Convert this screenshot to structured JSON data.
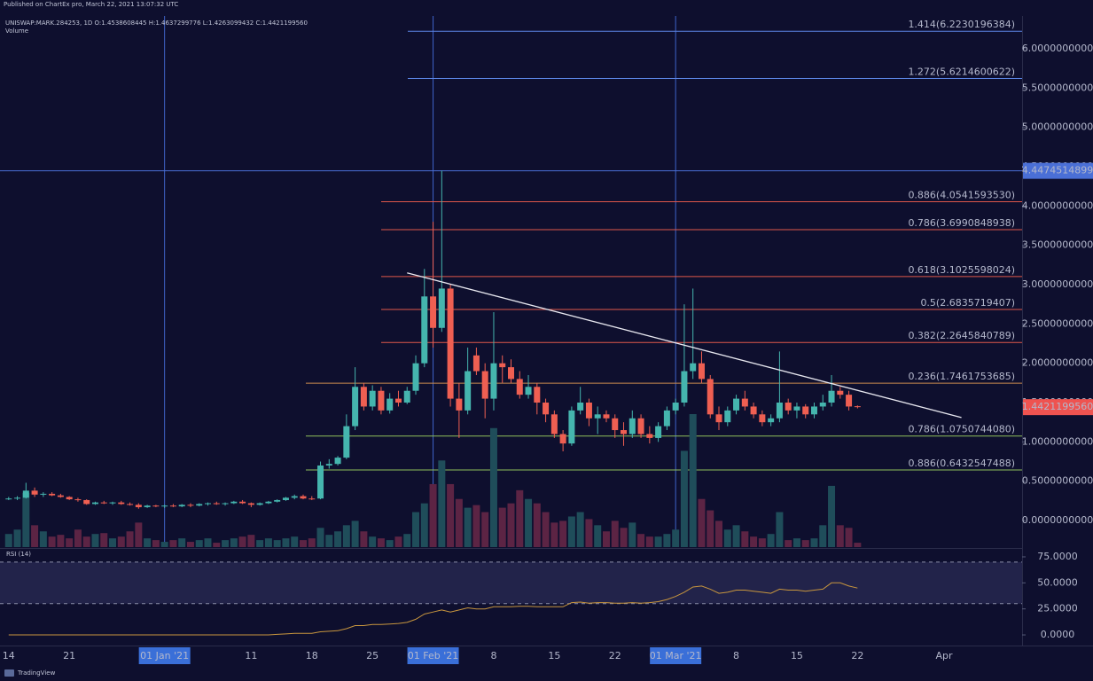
{
  "published": "Published on ChartEx pro, March 22, 2021 13:07:32 UTC",
  "footer": "TradingView",
  "chart_data": {
    "type": "candlestick",
    "symbol_line": "UNISWAP:MARK.284253, 1D O:1.4538608445 H:1.4637299776 L:1.4263099432 C:1.4421199560",
    "volume_label": "Volume",
    "up_color": "#45b5ae",
    "down_color": "#ef5f52",
    "volume_up_color": "#1f4d5a",
    "volume_down_color": "#5c2444",
    "x": [
      "2020-12-14",
      "2020-12-15",
      "2020-12-16",
      "2020-12-17",
      "2020-12-18",
      "2020-12-19",
      "2020-12-20",
      "2020-12-21",
      "2020-12-22",
      "2020-12-23",
      "2020-12-24",
      "2020-12-25",
      "2020-12-26",
      "2020-12-27",
      "2020-12-28",
      "2020-12-29",
      "2020-12-30",
      "2020-12-31",
      "2021-01-01",
      "2021-01-02",
      "2021-01-03",
      "2021-01-04",
      "2021-01-05",
      "2021-01-06",
      "2021-01-07",
      "2021-01-08",
      "2021-01-09",
      "2021-01-10",
      "2021-01-11",
      "2021-01-12",
      "2021-01-13",
      "2021-01-14",
      "2021-01-15",
      "2021-01-16",
      "2021-01-17",
      "2021-01-18",
      "2021-01-19",
      "2021-01-20",
      "2021-01-21",
      "2021-01-22",
      "2021-01-23",
      "2021-01-24",
      "2021-01-25",
      "2021-01-26",
      "2021-01-27",
      "2021-01-28",
      "2021-01-29",
      "2021-01-30",
      "2021-01-31",
      "2021-02-01",
      "2021-02-02",
      "2021-02-03",
      "2021-02-04",
      "2021-02-05",
      "2021-02-06",
      "2021-02-07",
      "2021-02-08",
      "2021-02-09",
      "2021-02-10",
      "2021-02-11",
      "2021-02-12",
      "2021-02-13",
      "2021-02-14",
      "2021-02-15",
      "2021-02-16",
      "2021-02-17",
      "2021-02-18",
      "2021-02-19",
      "2021-02-20",
      "2021-02-21",
      "2021-02-22",
      "2021-02-23",
      "2021-02-24",
      "2021-02-25",
      "2021-02-26",
      "2021-02-27",
      "2021-02-28",
      "2021-03-01",
      "2021-03-02",
      "2021-03-03",
      "2021-03-04",
      "2021-03-05",
      "2021-03-06",
      "2021-03-07",
      "2021-03-08",
      "2021-03-09",
      "2021-03-10",
      "2021-03-11",
      "2021-03-12",
      "2021-03-13",
      "2021-03-14",
      "2021-03-15",
      "2021-03-16",
      "2021-03-17",
      "2021-03-18",
      "2021-03-19",
      "2021-03-20",
      "2021-03-21",
      "2021-03-22"
    ],
    "open": [
      0.27,
      0.28,
      0.29,
      0.38,
      0.33,
      0.34,
      0.32,
      0.3,
      0.27,
      0.26,
      0.21,
      0.23,
      0.22,
      0.23,
      0.21,
      0.2,
      0.17,
      0.19,
      0.18,
      0.19,
      0.18,
      0.2,
      0.19,
      0.21,
      0.22,
      0.21,
      0.22,
      0.24,
      0.22,
      0.2,
      0.22,
      0.24,
      0.26,
      0.29,
      0.31,
      0.28,
      0.28,
      0.7,
      0.72,
      0.8,
      1.2,
      1.7,
      1.45,
      1.65,
      1.4,
      1.55,
      1.5,
      1.65,
      2.0,
      2.85,
      2.45,
      2.95,
      1.55,
      1.4,
      2.1,
      1.9,
      1.55,
      2.0,
      1.95,
      1.8,
      1.6,
      1.7,
      1.5,
      1.35,
      1.1,
      0.98,
      1.4,
      1.5,
      1.3,
      1.35,
      1.3,
      1.15,
      1.1,
      1.3,
      1.1,
      1.05,
      1.2,
      1.4,
      1.5,
      1.9,
      2.0,
      1.8,
      1.35,
      1.25,
      1.4,
      1.55,
      1.45,
      1.35,
      1.25,
      1.3,
      1.5,
      1.4,
      1.45,
      1.35,
      1.45,
      1.5,
      1.65,
      1.6,
      1.4538608445
    ],
    "high": [
      0.3,
      0.31,
      0.48,
      0.42,
      0.36,
      0.36,
      0.34,
      0.31,
      0.29,
      0.27,
      0.24,
      0.25,
      0.24,
      0.25,
      0.23,
      0.22,
      0.2,
      0.2,
      0.2,
      0.21,
      0.21,
      0.22,
      0.22,
      0.23,
      0.24,
      0.23,
      0.25,
      0.26,
      0.23,
      0.23,
      0.25,
      0.27,
      0.3,
      0.33,
      0.33,
      0.31,
      0.75,
      0.78,
      0.82,
      1.35,
      1.95,
      1.75,
      1.72,
      1.7,
      1.62,
      1.65,
      1.7,
      2.1,
      3.2,
      3.8,
      4.45,
      3.0,
      1.75,
      2.2,
      2.2,
      2.0,
      2.65,
      2.1,
      2.05,
      1.9,
      1.85,
      1.75,
      1.55,
      1.4,
      1.15,
      1.45,
      1.7,
      1.55,
      1.45,
      1.4,
      1.35,
      1.25,
      1.4,
      1.35,
      1.2,
      1.25,
      1.45,
      1.55,
      2.75,
      2.95,
      2.15,
      1.85,
      1.45,
      1.45,
      1.6,
      1.65,
      1.5,
      1.4,
      1.35,
      2.15,
      1.55,
      1.5,
      1.48,
      1.5,
      1.6,
      1.85,
      1.7,
      1.65,
      1.4637299776
    ],
    "low": [
      0.26,
      0.26,
      0.28,
      0.3,
      0.3,
      0.31,
      0.29,
      0.26,
      0.24,
      0.2,
      0.2,
      0.21,
      0.2,
      0.2,
      0.19,
      0.15,
      0.16,
      0.17,
      0.16,
      0.17,
      0.17,
      0.17,
      0.18,
      0.19,
      0.2,
      0.19,
      0.21,
      0.21,
      0.17,
      0.19,
      0.21,
      0.23,
      0.25,
      0.27,
      0.27,
      0.26,
      0.27,
      0.66,
      0.7,
      0.78,
      1.15,
      1.4,
      1.4,
      1.35,
      1.36,
      1.45,
      1.48,
      1.6,
      1.95,
      2.2,
      2.4,
      1.45,
      1.05,
      1.35,
      1.85,
      1.3,
      1.4,
      1.75,
      1.75,
      1.55,
      1.55,
      1.35,
      1.25,
      1.05,
      0.88,
      0.95,
      1.35,
      1.2,
      1.1,
      1.25,
      1.05,
      0.95,
      1.05,
      1.05,
      0.98,
      1.0,
      1.15,
      1.35,
      1.45,
      1.8,
      1.75,
      1.3,
      1.15,
      1.2,
      1.35,
      1.4,
      1.3,
      1.2,
      1.2,
      1.25,
      1.35,
      1.3,
      1.3,
      1.3,
      1.4,
      1.45,
      1.55,
      1.4,
      1.4263099432
    ],
    "close": [
      0.28,
      0.29,
      0.38,
      0.33,
      0.34,
      0.32,
      0.3,
      0.27,
      0.26,
      0.21,
      0.23,
      0.22,
      0.23,
      0.21,
      0.2,
      0.17,
      0.19,
      0.18,
      0.19,
      0.18,
      0.2,
      0.19,
      0.21,
      0.22,
      0.21,
      0.22,
      0.24,
      0.22,
      0.2,
      0.22,
      0.24,
      0.26,
      0.29,
      0.31,
      0.28,
      0.27,
      0.7,
      0.72,
      0.8,
      1.2,
      1.7,
      1.45,
      1.65,
      1.4,
      1.55,
      1.5,
      1.65,
      2.0,
      2.85,
      2.45,
      2.95,
      1.55,
      1.4,
      1.9,
      1.9,
      1.55,
      2.0,
      1.95,
      1.8,
      1.6,
      1.7,
      1.5,
      1.35,
      1.1,
      0.98,
      1.4,
      1.5,
      1.3,
      1.35,
      1.3,
      1.15,
      1.1,
      1.3,
      1.1,
      1.05,
      1.2,
      1.4,
      1.5,
      1.9,
      2.0,
      1.8,
      1.35,
      1.25,
      1.4,
      1.55,
      1.45,
      1.35,
      1.25,
      1.3,
      1.5,
      1.4,
      1.45,
      1.35,
      1.45,
      1.5,
      1.65,
      1.6,
      1.45,
      1.442119956
    ],
    "volume": [
      15,
      20,
      62,
      25,
      18,
      12,
      14,
      10,
      20,
      12,
      15,
      16,
      10,
      12,
      18,
      28,
      10,
      8,
      6,
      8,
      10,
      6,
      8,
      10,
      5,
      8,
      10,
      12,
      14,
      8,
      10,
      8,
      10,
      12,
      8,
      10,
      22,
      14,
      18,
      25,
      30,
      18,
      12,
      10,
      8,
      12,
      15,
      40,
      50,
      72,
      99,
      72,
      55,
      45,
      48,
      40,
      136,
      45,
      50,
      65,
      55,
      50,
      40,
      28,
      30,
      35,
      40,
      32,
      25,
      18,
      30,
      22,
      28,
      15,
      12,
      12,
      15,
      20,
      110,
      152,
      55,
      42,
      30,
      20,
      25,
      18,
      12,
      10,
      15,
      40,
      8,
      10,
      8,
      10,
      25,
      70,
      25,
      22,
      5
    ],
    "xlim": [
      "2020-12-13",
      "2021-04-10"
    ],
    "xticks": [
      {
        "value": "2020-12-14",
        "label": "14"
      },
      {
        "value": "2020-12-21",
        "label": "21"
      },
      {
        "value": "2021-01-01",
        "label": "01 Jan '21"
      },
      {
        "value": "2021-01-11",
        "label": "11"
      },
      {
        "value": "2021-01-18",
        "label": "18"
      },
      {
        "value": "2021-01-25",
        "label": "25"
      },
      {
        "value": "2021-02-01",
        "label": "01 Feb '21"
      },
      {
        "value": "2021-02-08",
        "label": "8"
      },
      {
        "value": "2021-02-15",
        "label": "15"
      },
      {
        "value": "2021-02-22",
        "label": "22"
      },
      {
        "value": "2021-03-01",
        "label": "01 Mar '21"
      },
      {
        "value": "2021-03-08",
        "label": "8"
      },
      {
        "value": "2021-03-15",
        "label": "15"
      },
      {
        "value": "2021-03-22",
        "label": "22"
      },
      {
        "value": "2021-04-01",
        "label": "Apr"
      }
    ],
    "vlines": [
      "2021-01-01",
      "2021-02-01",
      "2021-03-01"
    ],
    "vline_color": "#3f63c9",
    "ylim": [
      -0.338,
      6.417
    ],
    "yticks": [
      {
        "value": 0,
        "label": "0.0000000000"
      },
      {
        "value": 0.5,
        "label": "0.5000000000"
      },
      {
        "value": 1,
        "label": "1.0000000000"
      },
      {
        "value": 1.5,
        "label": "1.5000000000"
      },
      {
        "value": 2,
        "label": "2.0000000000"
      },
      {
        "value": 2.5,
        "label": "2.5000000000"
      },
      {
        "value": 3,
        "label": "3.0000000000"
      },
      {
        "value": 3.5,
        "label": "3.5000000000"
      },
      {
        "value": 4,
        "label": "4.0000000000"
      },
      {
        "value": 4.5,
        "label": "4.5000000000"
      },
      {
        "value": 5,
        "label": "5.0000000000"
      },
      {
        "value": 5.5,
        "label": "5.5000000000"
      },
      {
        "value": 6,
        "label": "6.0000000000"
      }
    ],
    "levels": [
      {
        "label": "1.414(6.2230196384)",
        "value": 6.2230196384,
        "color": "#5c86e6"
      },
      {
        "label": "1.272(5.6214600622)",
        "value": 5.6214600622,
        "color": "#5c86e6"
      },
      {
        "label": "0.886(4.0541593530)",
        "value": 4.054159353,
        "color": "#e0584a"
      },
      {
        "label": "0.786(3.6990848938)",
        "value": 3.6990848938,
        "color": "#e0584a"
      },
      {
        "label": "0.618(3.1025598024)",
        "value": 3.1025598024,
        "color": "#e0584a"
      },
      {
        "label": "0.5(2.6835719407)",
        "value": 2.6835719407,
        "color": "#e0584a"
      },
      {
        "label": "0.382(2.2645840789)",
        "value": 2.2645840789,
        "color": "#e0584a"
      },
      {
        "label": "0.236(1.7461753685)",
        "value": 1.7461753685,
        "color": "#c98a4e"
      },
      {
        "label": "0.786(1.0750744080)",
        "value": 1.075074408,
        "color": "#8fbf5a"
      },
      {
        "label": "0.886(0.6432547488)",
        "value": 0.6432547488,
        "color": "#8fbf5a"
      }
    ],
    "hline": {
      "value": 4.4474514899,
      "color": "#4a6fd6"
    },
    "last_price": {
      "value": 1.442119956,
      "label": "1.4421199560",
      "color": "#ef5350"
    },
    "trendline": {
      "x": [
        "2021-01-29",
        "2021-04-03"
      ],
      "y": [
        3.15,
        1.31
      ],
      "color": "#e8e8f0"
    },
    "rsi": {
      "label": "RSI (14)",
      "color": "#c8963e",
      "band": [
        30,
        70
      ],
      "ylim": [
        -10.2,
        81.8
      ],
      "yticks": [
        {
          "value": 75,
          "label": "75.0000"
        },
        {
          "value": 50,
          "label": "50.0000"
        },
        {
          "value": 25,
          "label": "25.0000"
        },
        {
          "value": 0,
          "label": "0.0000"
        }
      ],
      "values": [
        0,
        0,
        0,
        0,
        0,
        0,
        0,
        0,
        0,
        0,
        0,
        0,
        0,
        0,
        0,
        0,
        0,
        0,
        0,
        0,
        0,
        0,
        0,
        0,
        0,
        0,
        0,
        0,
        0,
        0,
        0,
        0.5,
        1,
        1.5,
        1.5,
        1.5,
        3,
        3.5,
        4,
        6,
        9,
        9,
        10,
        10,
        10.5,
        11,
        12,
        15,
        20,
        22,
        24,
        22,
        24,
        26,
        25,
        25,
        27,
        27,
        27,
        27.5,
        27.5,
        27,
        27,
        27,
        27,
        31,
        31.5,
        30.5,
        31,
        31,
        30.5,
        30.5,
        31,
        30.5,
        31,
        32,
        34,
        37,
        41,
        46,
        47,
        44,
        40,
        41,
        43,
        43,
        42,
        41,
        40,
        44,
        43,
        43,
        42,
        43,
        44,
        50,
        50,
        47,
        45
      ]
    }
  }
}
